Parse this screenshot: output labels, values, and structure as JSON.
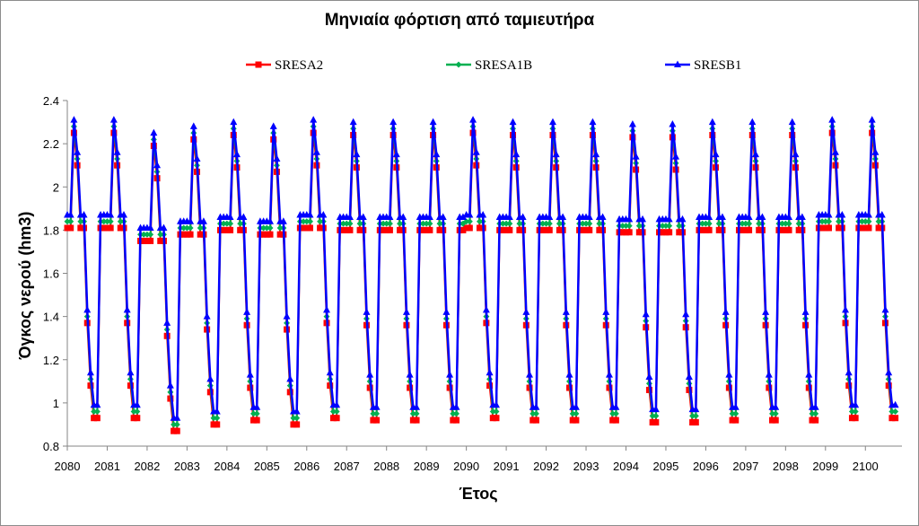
{
  "chart_data": {
    "type": "line",
    "title": "Μηνιαία φόρτιση από ταμιευτήρα",
    "xlabel": "Έτος",
    "ylabel": "Όγκος νερού (hm3)",
    "xlim": [
      2080,
      2100.916
    ],
    "ylim": [
      0.8,
      2.4
    ],
    "y_ticks": [
      0.8,
      1,
      1.2,
      1.4,
      1.6,
      1.8,
      2,
      2.2,
      2.4
    ],
    "y_tick_labels": [
      "0.8",
      "1",
      "1.2",
      "1.4",
      "1.6",
      "1.8",
      "2",
      "2.2",
      "2.4"
    ],
    "x_ticks": [
      2080,
      2081,
      2082,
      2083,
      2084,
      2085,
      2086,
      2087,
      2088,
      2089,
      2090,
      2091,
      2092,
      2093,
      2094,
      2095,
      2096,
      2097,
      2098,
      2099,
      2100
    ],
    "x_tick_labels": [
      "2080",
      "2081",
      "2082",
      "2083",
      "2084",
      "2085",
      "2086",
      "2087",
      "2088",
      "2089",
      "2090",
      "2091",
      "2092",
      "2093",
      "2094",
      "2095",
      "2096",
      "2097",
      "2098",
      "2099",
      "2100"
    ],
    "grid": false,
    "legend_position": "top",
    "points_per_year": 12,
    "years": [
      2080,
      2081,
      2082,
      2083,
      2084,
      2085,
      2086,
      2087,
      2088,
      2089,
      2090,
      2091,
      2092,
      2093,
      2094,
      2095,
      2096,
      2097,
      2098,
      2099,
      2100
    ],
    "series": [
      {
        "name": "SRESA2",
        "color": "#ff0000",
        "marker": "square",
        "years": [
          [
            1.81,
            1.81,
            2.25,
            2.1,
            1.81,
            1.81,
            1.37,
            1.08,
            0.93,
            0.93,
            1.81,
            1.81
          ],
          [
            1.81,
            1.81,
            2.25,
            2.1,
            1.81,
            1.81,
            1.37,
            1.08,
            0.93,
            0.93,
            1.75,
            1.75
          ],
          [
            1.75,
            1.75,
            2.19,
            2.04,
            1.75,
            1.75,
            1.31,
            1.02,
            0.87,
            0.87,
            1.78,
            1.78
          ],
          [
            1.78,
            1.78,
            2.22,
            2.07,
            1.78,
            1.78,
            1.34,
            1.05,
            0.9,
            0.9,
            1.8,
            1.8
          ],
          [
            1.8,
            1.8,
            2.24,
            2.09,
            1.8,
            1.8,
            1.36,
            1.07,
            0.92,
            0.92,
            1.78,
            1.78
          ],
          [
            1.78,
            1.78,
            2.22,
            2.07,
            1.78,
            1.78,
            1.34,
            1.05,
            0.9,
            0.9,
            1.81,
            1.81
          ],
          [
            1.81,
            1.81,
            2.25,
            2.1,
            1.81,
            1.81,
            1.37,
            1.08,
            0.93,
            0.93,
            1.8,
            1.8
          ],
          [
            1.8,
            1.8,
            2.24,
            2.09,
            1.8,
            1.8,
            1.36,
            1.07,
            0.92,
            0.92,
            1.8,
            1.8
          ],
          [
            1.8,
            1.8,
            2.24,
            2.09,
            1.8,
            1.8,
            1.36,
            1.07,
            0.92,
            0.92,
            1.8,
            1.8
          ],
          [
            1.8,
            1.8,
            2.24,
            2.09,
            1.8,
            1.8,
            1.36,
            1.07,
            0.92,
            0.92,
            1.8,
            1.8
          ],
          [
            1.81,
            1.81,
            2.25,
            2.1,
            1.81,
            1.81,
            1.37,
            1.08,
            0.93,
            0.93,
            1.8,
            1.8
          ],
          [
            1.8,
            1.8,
            2.24,
            2.09,
            1.8,
            1.8,
            1.36,
            1.07,
            0.92,
            0.92,
            1.8,
            1.8
          ],
          [
            1.8,
            1.8,
            2.24,
            2.09,
            1.8,
            1.8,
            1.36,
            1.07,
            0.92,
            0.92,
            1.8,
            1.8
          ],
          [
            1.8,
            1.8,
            2.24,
            2.09,
            1.8,
            1.8,
            1.36,
            1.07,
            0.92,
            0.92,
            1.79,
            1.79
          ],
          [
            1.79,
            1.79,
            2.23,
            2.08,
            1.79,
            1.79,
            1.35,
            1.06,
            0.91,
            0.91,
            1.79,
            1.79
          ],
          [
            1.79,
            1.79,
            2.23,
            2.08,
            1.79,
            1.79,
            1.35,
            1.06,
            0.91,
            0.91,
            1.8,
            1.8
          ],
          [
            1.8,
            1.8,
            2.24,
            2.09,
            1.8,
            1.8,
            1.36,
            1.07,
            0.92,
            0.92,
            1.8,
            1.8
          ],
          [
            1.8,
            1.8,
            2.24,
            2.09,
            1.8,
            1.8,
            1.36,
            1.07,
            0.92,
            0.92,
            1.8,
            1.8
          ],
          [
            1.8,
            1.8,
            2.24,
            2.09,
            1.8,
            1.8,
            1.36,
            1.07,
            0.92,
            0.92,
            1.81,
            1.81
          ],
          [
            1.81,
            1.81,
            2.25,
            2.1,
            1.81,
            1.81,
            1.37,
            1.08,
            0.93,
            0.93,
            1.81,
            1.81
          ],
          [
            1.81,
            1.81,
            2.25,
            2.1,
            1.81,
            1.81,
            1.37,
            1.08,
            0.93,
            0.93
          ]
        ]
      },
      {
        "name": "SRESA1B",
        "color": "#00b050",
        "marker": "diamond",
        "years": [
          [
            1.84,
            1.84,
            2.28,
            2.13,
            1.84,
            1.84,
            1.4,
            1.11,
            0.96,
            0.96,
            1.84,
            1.84
          ],
          [
            1.84,
            1.84,
            2.28,
            2.13,
            1.84,
            1.84,
            1.4,
            1.11,
            0.96,
            0.96,
            1.78,
            1.78
          ],
          [
            1.78,
            1.78,
            2.22,
            2.07,
            1.78,
            1.78,
            1.34,
            1.05,
            0.9,
            0.9,
            1.81,
            1.81
          ],
          [
            1.81,
            1.81,
            2.25,
            2.1,
            1.81,
            1.81,
            1.37,
            1.08,
            0.93,
            0.93,
            1.83,
            1.83
          ],
          [
            1.83,
            1.83,
            2.27,
            2.12,
            1.83,
            1.83,
            1.39,
            1.1,
            0.95,
            0.95,
            1.81,
            1.81
          ],
          [
            1.81,
            1.81,
            2.25,
            2.1,
            1.81,
            1.81,
            1.37,
            1.08,
            0.93,
            0.93,
            1.84,
            1.84
          ],
          [
            1.84,
            1.84,
            2.28,
            2.13,
            1.84,
            1.84,
            1.4,
            1.11,
            0.96,
            0.96,
            1.83,
            1.83
          ],
          [
            1.83,
            1.83,
            2.27,
            2.12,
            1.83,
            1.83,
            1.39,
            1.1,
            0.95,
            0.95,
            1.83,
            1.83
          ],
          [
            1.83,
            1.83,
            2.27,
            2.12,
            1.83,
            1.83,
            1.39,
            1.1,
            0.95,
            0.95,
            1.83,
            1.83
          ],
          [
            1.83,
            1.83,
            2.27,
            2.12,
            1.83,
            1.83,
            1.39,
            1.1,
            0.95,
            0.95,
            1.83,
            1.83
          ],
          [
            1.84,
            1.84,
            2.28,
            2.13,
            1.84,
            1.84,
            1.4,
            1.11,
            0.96,
            0.96,
            1.83,
            1.83
          ],
          [
            1.83,
            1.83,
            2.27,
            2.12,
            1.83,
            1.83,
            1.39,
            1.1,
            0.95,
            0.95,
            1.83,
            1.83
          ],
          [
            1.83,
            1.83,
            2.27,
            2.12,
            1.83,
            1.83,
            1.39,
            1.1,
            0.95,
            0.95,
            1.83,
            1.83
          ],
          [
            1.83,
            1.83,
            2.27,
            2.12,
            1.83,
            1.83,
            1.39,
            1.1,
            0.95,
            0.95,
            1.82,
            1.82
          ],
          [
            1.82,
            1.82,
            2.26,
            2.11,
            1.82,
            1.82,
            1.38,
            1.09,
            0.94,
            0.94,
            1.82,
            1.82
          ],
          [
            1.82,
            1.82,
            2.26,
            2.11,
            1.82,
            1.82,
            1.38,
            1.09,
            0.94,
            0.94,
            1.83,
            1.83
          ],
          [
            1.83,
            1.83,
            2.27,
            2.12,
            1.83,
            1.83,
            1.39,
            1.1,
            0.95,
            0.95,
            1.83,
            1.83
          ],
          [
            1.83,
            1.83,
            2.27,
            2.12,
            1.83,
            1.83,
            1.39,
            1.1,
            0.95,
            0.95,
            1.83,
            1.83
          ],
          [
            1.83,
            1.83,
            2.27,
            2.12,
            1.83,
            1.83,
            1.39,
            1.1,
            0.95,
            0.95,
            1.84,
            1.84
          ],
          [
            1.84,
            1.84,
            2.28,
            2.13,
            1.84,
            1.84,
            1.4,
            1.11,
            0.96,
            0.96,
            1.84,
            1.84
          ],
          [
            1.84,
            1.84,
            2.28,
            2.13,
            1.84,
            1.84,
            1.4,
            1.11,
            0.96,
            0.96
          ]
        ]
      },
      {
        "name": "SRESB1",
        "color": "#0000ff",
        "marker": "triangle",
        "years": [
          [
            1.87,
            1.87,
            2.31,
            2.16,
            1.87,
            1.87,
            1.43,
            1.14,
            0.99,
            0.99,
            1.87,
            1.87
          ],
          [
            1.87,
            1.87,
            2.31,
            2.16,
            1.87,
            1.87,
            1.43,
            1.14,
            0.99,
            0.99,
            1.81,
            1.81
          ],
          [
            1.81,
            1.81,
            2.25,
            2.1,
            1.81,
            1.81,
            1.37,
            1.08,
            0.93,
            0.93,
            1.84,
            1.84
          ],
          [
            1.84,
            1.84,
            2.28,
            2.13,
            1.84,
            1.84,
            1.4,
            1.11,
            0.96,
            0.96,
            1.86,
            1.86
          ],
          [
            1.86,
            1.86,
            2.3,
            2.15,
            1.86,
            1.86,
            1.42,
            1.13,
            0.98,
            0.98,
            1.84,
            1.84
          ],
          [
            1.84,
            1.84,
            2.28,
            2.13,
            1.84,
            1.84,
            1.4,
            1.11,
            0.96,
            0.96,
            1.87,
            1.87
          ],
          [
            1.87,
            1.87,
            2.31,
            2.16,
            1.87,
            1.87,
            1.43,
            1.14,
            0.99,
            0.99,
            1.86,
            1.86
          ],
          [
            1.86,
            1.86,
            2.3,
            2.15,
            1.86,
            1.86,
            1.42,
            1.13,
            0.98,
            0.98,
            1.86,
            1.86
          ],
          [
            1.86,
            1.86,
            2.3,
            2.15,
            1.86,
            1.86,
            1.42,
            1.13,
            0.98,
            0.98,
            1.86,
            1.86
          ],
          [
            1.86,
            1.86,
            2.3,
            2.15,
            1.86,
            1.86,
            1.42,
            1.13,
            0.98,
            0.98,
            1.86,
            1.86
          ],
          [
            1.87,
            1.87,
            2.31,
            2.16,
            1.87,
            1.87,
            1.43,
            1.14,
            0.99,
            0.99,
            1.86,
            1.86
          ],
          [
            1.86,
            1.86,
            2.3,
            2.15,
            1.86,
            1.86,
            1.42,
            1.13,
            0.98,
            0.98,
            1.86,
            1.86
          ],
          [
            1.86,
            1.86,
            2.3,
            2.15,
            1.86,
            1.86,
            1.42,
            1.13,
            0.98,
            0.98,
            1.86,
            1.86
          ],
          [
            1.86,
            1.86,
            2.3,
            2.15,
            1.86,
            1.86,
            1.42,
            1.13,
            0.98,
            0.98,
            1.85,
            1.85
          ],
          [
            1.85,
            1.85,
            2.29,
            2.14,
            1.85,
            1.85,
            1.41,
            1.12,
            0.97,
            0.97,
            1.85,
            1.85
          ],
          [
            1.85,
            1.85,
            2.29,
            2.14,
            1.85,
            1.85,
            1.41,
            1.12,
            0.97,
            0.97,
            1.86,
            1.86
          ],
          [
            1.86,
            1.86,
            2.3,
            2.15,
            1.86,
            1.86,
            1.42,
            1.13,
            0.98,
            0.98,
            1.86,
            1.86
          ],
          [
            1.86,
            1.86,
            2.3,
            2.15,
            1.86,
            1.86,
            1.42,
            1.13,
            0.98,
            0.98,
            1.86,
            1.86
          ],
          [
            1.86,
            1.86,
            2.3,
            2.15,
            1.86,
            1.86,
            1.42,
            1.13,
            0.98,
            0.98,
            1.87,
            1.87
          ],
          [
            1.87,
            1.87,
            2.31,
            2.16,
            1.87,
            1.87,
            1.43,
            1.14,
            0.99,
            0.99,
            1.87,
            1.87
          ],
          [
            1.87,
            1.87,
            2.31,
            2.16,
            1.87,
            1.87,
            1.43,
            1.14,
            0.99,
            0.99
          ]
        ]
      }
    ]
  }
}
